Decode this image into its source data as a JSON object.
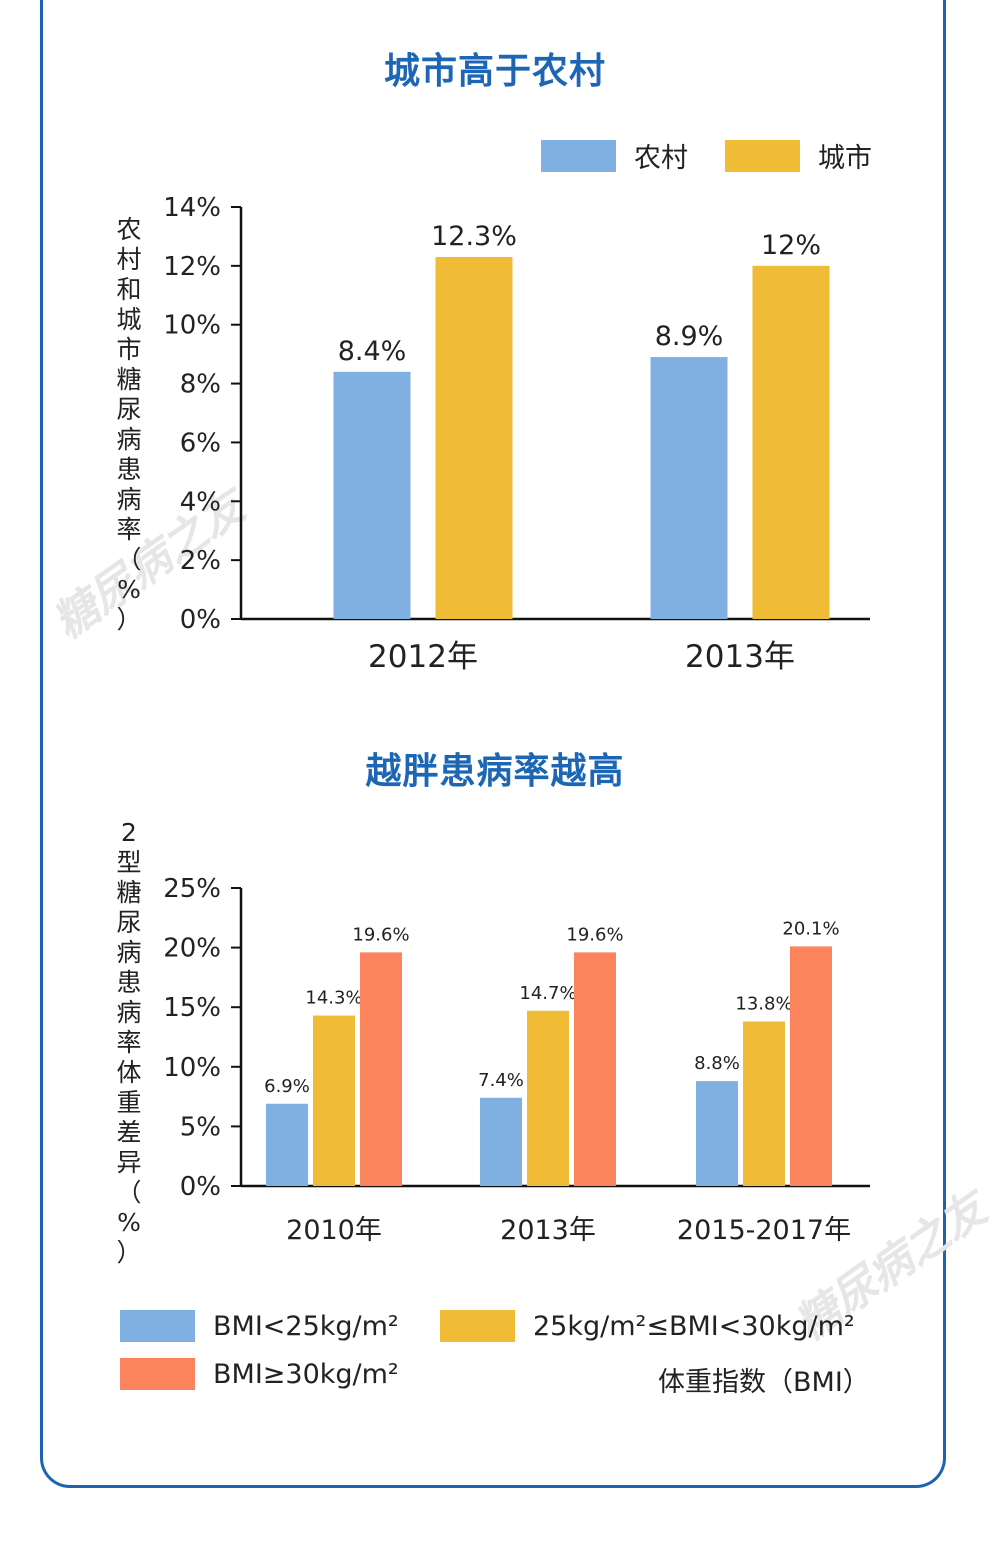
{
  "colors": {
    "frame": "#1c63b0",
    "title": "#1d66b5",
    "rural": "#7fb0e1",
    "urban": "#f0bb35",
    "bmi_low": "#7fb0e1",
    "bmi_mid": "#f0bb35",
    "bmi_high": "#fb845c"
  },
  "watermark": "糖尿病之友",
  "chart_data": [
    {
      "type": "bar",
      "title": "城市高于农村",
      "ylabel": "农村和城市糖尿病患病率（%）",
      "categories": [
        "2012年",
        "2013年"
      ],
      "ylim": [
        0,
        14
      ],
      "yticks": [
        "0%",
        "2%",
        "4%",
        "6%",
        "8%",
        "10%",
        "12%",
        "14%"
      ],
      "legend_position": "top-right",
      "series": [
        {
          "name": "农村",
          "color": "#7fb0e1",
          "values": [
            8.4,
            8.9
          ],
          "labels": [
            "8.4%",
            "8.9%"
          ]
        },
        {
          "name": "城市",
          "color": "#f0bb35",
          "values": [
            12.3,
            12
          ],
          "labels": [
            "12.3%",
            "12%"
          ]
        }
      ]
    },
    {
      "type": "bar",
      "title": "越胖患病率越高",
      "ylabel": "2型糖尿病患病率体重差异（%）",
      "categories": [
        "2010年",
        "2013年",
        "2015-2017年"
      ],
      "ylim": [
        0,
        25
      ],
      "yticks": [
        "0%",
        "5%",
        "10%",
        "15%",
        "20%",
        "25%"
      ],
      "legend_position": "bottom",
      "legend_note": "体重指数（BMI）",
      "series": [
        {
          "name": "BMI<25kg/m²",
          "color": "#7fb0e1",
          "values": [
            6.9,
            7.4,
            8.8
          ],
          "labels": [
            "6.9%",
            "7.4%",
            "8.8%"
          ]
        },
        {
          "name": "25kg/m²≤BMI<30kg/m²",
          "color": "#f0bb35",
          "values": [
            14.3,
            14.7,
            13.8
          ],
          "labels": [
            "14.3%",
            "14.7%",
            "13.8%"
          ]
        },
        {
          "name": "BMI≥30kg/m²",
          "color": "#fb845c",
          "values": [
            19.6,
            19.6,
            20.1
          ],
          "labels": [
            "19.6%",
            "19.6%",
            "20.1%"
          ]
        }
      ]
    }
  ]
}
